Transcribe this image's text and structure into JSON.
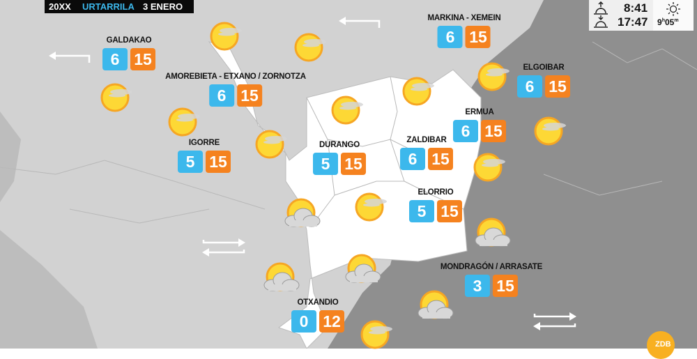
{
  "header": {
    "year": "20XX",
    "month_eu": "URTARRILA",
    "day_es": "3 ENERO"
  },
  "sun_times": {
    "sunrise": "8:41",
    "sunset": "17:47",
    "daylight_h": "9",
    "daylight_m": "05",
    "icons": [
      "sunrise-icon",
      "sunset-icon",
      "sun-icon"
    ]
  },
  "colors": {
    "min": "#3cb8ec",
    "max": "#f5821f",
    "region": "#ffffff",
    "land": "#cfcfcf"
  },
  "cities": [
    {
      "name": "GALDAKAO",
      "min": "6",
      "max": "15"
    },
    {
      "name": "AMOREBIETA - ETXANO / ZORNOTZA",
      "min": "6",
      "max": "15"
    },
    {
      "name": "IGORRE",
      "min": "5",
      "max": "15"
    },
    {
      "name": "DURANGO",
      "min": "5",
      "max": "15"
    },
    {
      "name": "MARKINA - XEMEIN",
      "min": "6",
      "max": "15"
    },
    {
      "name": "ELGOIBAR",
      "min": "6",
      "max": "15"
    },
    {
      "name": "ERMUA",
      "min": "6",
      "max": "15"
    },
    {
      "name": "ZALDIBAR",
      "min": "6",
      "max": "15"
    },
    {
      "name": "ELORRIO",
      "min": "5",
      "max": "15"
    },
    {
      "name": "MONDRAGÓN / ARRASATE",
      "min": "3",
      "max": "15"
    },
    {
      "name": "OTXANDIO",
      "min": "0",
      "max": "12"
    }
  ],
  "weather_icons": [
    {
      "type": "sunny-haze"
    },
    {
      "type": "sunny-haze"
    },
    {
      "type": "sunny-haze"
    },
    {
      "type": "sunny-haze"
    },
    {
      "type": "sunny-haze"
    },
    {
      "type": "sunny-haze"
    },
    {
      "type": "sunny-haze"
    },
    {
      "type": "sunny-haze"
    },
    {
      "type": "sunny-haze"
    },
    {
      "type": "sunny-haze"
    },
    {
      "type": "sun-cloud"
    },
    {
      "type": "sunny-haze"
    },
    {
      "type": "sun-cloud"
    },
    {
      "type": "sun-cloud"
    },
    {
      "type": "sun-cloud"
    },
    {
      "type": "sun-cloud"
    },
    {
      "type": "sunny-haze"
    }
  ],
  "wind_arrows": [
    {
      "direction": "west"
    },
    {
      "direction": "west"
    },
    {
      "direction": "variable"
    },
    {
      "direction": "variable"
    }
  ],
  "logo": {
    "text": "ZDB"
  }
}
